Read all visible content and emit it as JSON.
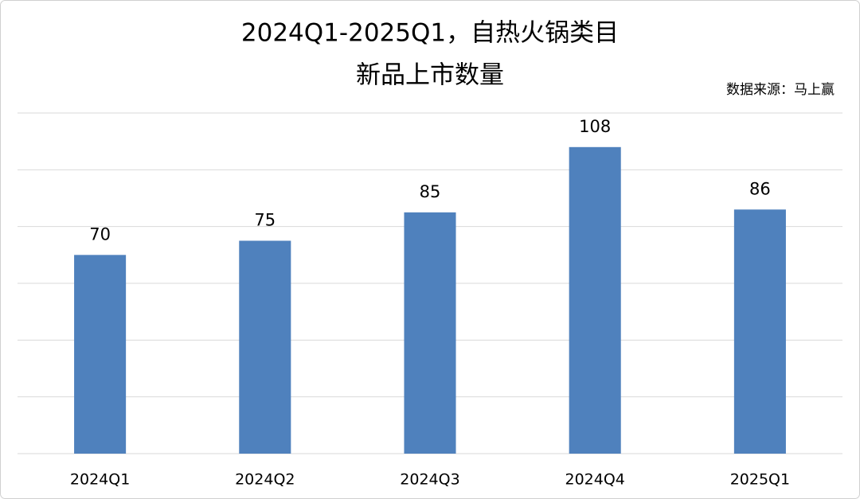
{
  "chart_data": {
    "type": "bar",
    "title": [
      "2024Q1-2025Q1，自热火锅类目",
      "新品上市数量"
    ],
    "source": "数据来源：马上赢",
    "categories": [
      "2024Q1",
      "2024Q2",
      "2024Q3",
      "2024Q4",
      "2025Q1"
    ],
    "values": [
      70,
      75,
      85,
      108,
      86
    ],
    "color": "#4f81bd",
    "ylim": [
      0,
      120
    ],
    "yticks": [
      0,
      20,
      40,
      60,
      80,
      100,
      120
    ],
    "grid": true
  }
}
